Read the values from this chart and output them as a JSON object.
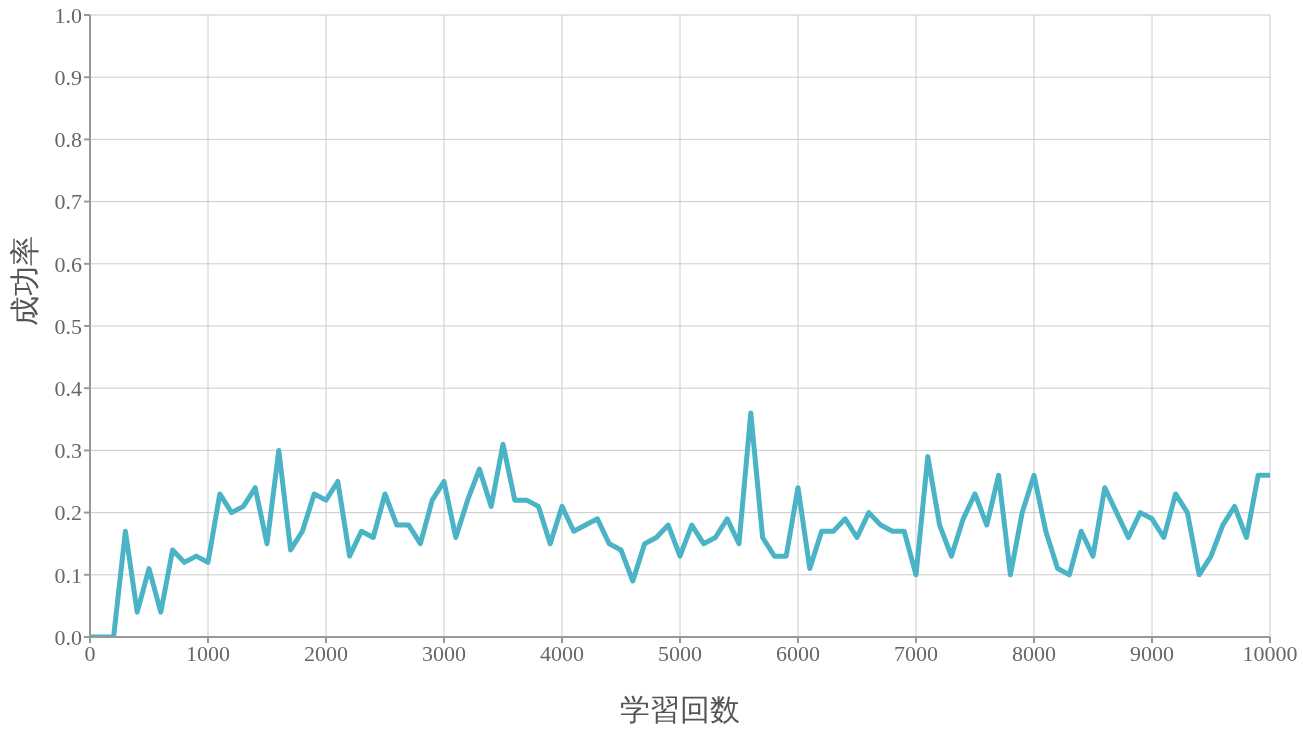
{
  "chart_data": {
    "type": "line",
    "xlabel": "学習回数",
    "ylabel": "成功率",
    "x": [
      0,
      100,
      200,
      300,
      400,
      500,
      600,
      700,
      800,
      900,
      1000,
      1100,
      1200,
      1300,
      1400,
      1500,
      1600,
      1700,
      1800,
      1900,
      2000,
      2100,
      2200,
      2300,
      2400,
      2500,
      2600,
      2700,
      2800,
      2900,
      3000,
      3100,
      3200,
      3300,
      3400,
      3500,
      3600,
      3700,
      3800,
      3900,
      4000,
      4100,
      4200,
      4300,
      4400,
      4500,
      4600,
      4700,
      4800,
      4900,
      5000,
      5100,
      5200,
      5300,
      5400,
      5500,
      5600,
      5700,
      5800,
      5900,
      6000,
      6100,
      6200,
      6300,
      6400,
      6500,
      6600,
      6700,
      6800,
      6900,
      7000,
      7100,
      7200,
      7300,
      7400,
      7500,
      7600,
      7700,
      7800,
      7900,
      8000,
      8100,
      8200,
      8300,
      8400,
      8500,
      8600,
      8700,
      8800,
      8900,
      9000,
      9100,
      9200,
      9300,
      9400,
      9500,
      9600,
      9700,
      9800,
      9900,
      10000
    ],
    "series": [
      {
        "color": "#4ab3c6",
        "values": [
          0,
          0,
          0,
          0.17,
          0.04,
          0.11,
          0.04,
          0.14,
          0.12,
          0.13,
          0.12,
          0.23,
          0.2,
          0.21,
          0.24,
          0.15,
          0.3,
          0.14,
          0.17,
          0.23,
          0.22,
          0.25,
          0.13,
          0.17,
          0.16,
          0.23,
          0.18,
          0.18,
          0.15,
          0.22,
          0.25,
          0.16,
          0.22,
          0.27,
          0.21,
          0.31,
          0.22,
          0.22,
          0.21,
          0.15,
          0.21,
          0.17,
          0.18,
          0.19,
          0.15,
          0.14,
          0.09,
          0.15,
          0.16,
          0.18,
          0.13,
          0.18,
          0.15,
          0.16,
          0.19,
          0.15,
          0.36,
          0.16,
          0.13,
          0.13,
          0.24,
          0.11,
          0.17,
          0.17,
          0.19,
          0.16,
          0.2,
          0.18,
          0.17,
          0.17,
          0.1,
          0.29,
          0.18,
          0.13,
          0.19,
          0.23,
          0.18,
          0.26,
          0.1,
          0.2,
          0.26,
          0.17,
          0.11,
          0.1,
          0.17,
          0.13,
          0.24,
          0.2,
          0.16,
          0.2,
          0.19,
          0.16,
          0.23,
          0.2,
          0.1,
          0.13,
          0.18,
          0.21,
          0.16,
          0.26,
          0.26
        ]
      }
    ],
    "xlim": [
      0,
      10000
    ],
    "xticks": [
      0,
      1000,
      2000,
      3000,
      4000,
      5000,
      6000,
      7000,
      8000,
      9000,
      10000
    ],
    "ylim": [
      0,
      1
    ],
    "yticks": [
      {
        "value": 0,
        "label": "0.0"
      },
      {
        "value": 0.1,
        "label": "0.1"
      },
      {
        "value": 0.2,
        "label": "0.2"
      },
      {
        "value": 0.3,
        "label": "0.3"
      },
      {
        "value": 0.4,
        "label": "0.4"
      },
      {
        "value": 0.5,
        "label": "0.5"
      },
      {
        "value": 0.6,
        "label": "0.6"
      },
      {
        "value": 0.7,
        "label": "0.7"
      },
      {
        "value": 0.8,
        "label": "0.8"
      },
      {
        "value": 0.9,
        "label": "0.9"
      },
      {
        "value": 1,
        "label": "1.0"
      }
    ],
    "grid": true,
    "legend": false,
    "marker": "none",
    "line_style": "solid"
  }
}
